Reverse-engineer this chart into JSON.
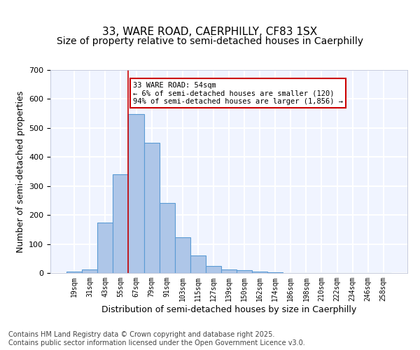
{
  "title1": "33, WARE ROAD, CAERPHILLY, CF83 1SX",
  "title2": "Size of property relative to semi-detached houses in Caerphilly",
  "xlabel": "Distribution of semi-detached houses by size in Caerphilly",
  "ylabel": "Number of semi-detached properties",
  "bar_labels": [
    "19sqm",
    "31sqm",
    "43sqm",
    "55sqm",
    "67sqm",
    "79sqm",
    "91sqm",
    "103sqm",
    "115sqm",
    "127sqm",
    "139sqm",
    "150sqm",
    "162sqm",
    "174sqm",
    "186sqm",
    "198sqm",
    "210sqm",
    "222sqm",
    "234sqm",
    "246sqm",
    "258sqm"
  ],
  "bar_values": [
    5,
    13,
    175,
    340,
    547,
    448,
    242,
    122,
    60,
    24,
    11,
    9,
    5,
    2,
    1,
    0,
    0,
    0,
    0,
    0,
    0
  ],
  "bar_color": "#aec6e8",
  "bar_edge_color": "#5b9bd5",
  "background_color": "#f0f4ff",
  "grid_color": "#ffffff",
  "vline_x": 3.5,
  "vline_color": "#cc0000",
  "annotation_text": "33 WARE ROAD: 54sqm\n← 6% of semi-detached houses are smaller (120)\n94% of semi-detached houses are larger (1,856) →",
  "annotation_box_color": "#cc0000",
  "ylim": [
    0,
    700
  ],
  "yticks": [
    0,
    100,
    200,
    300,
    400,
    500,
    600,
    700
  ],
  "footnote": "Contains HM Land Registry data © Crown copyright and database right 2025.\nContains public sector information licensed under the Open Government Licence v3.0.",
  "title1_fontsize": 11,
  "title2_fontsize": 10,
  "xlabel_fontsize": 9,
  "ylabel_fontsize": 9,
  "footnote_fontsize": 7
}
